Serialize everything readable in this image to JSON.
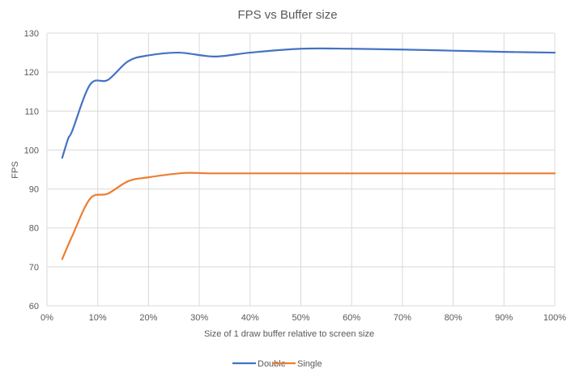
{
  "chart_data": {
    "type": "line",
    "title": "FPS vs Buffer size",
    "xlabel": "Size of 1 draw buffer relative to screen size",
    "ylabel": "FPS",
    "xlim": [
      0,
      100
    ],
    "ylim": [
      60,
      130
    ],
    "x_ticks": [
      "0%",
      "10%",
      "20%",
      "30%",
      "40%",
      "50%",
      "60%",
      "70%",
      "80%",
      "90%",
      "100%"
    ],
    "y_ticks": [
      "60",
      "70",
      "80",
      "90",
      "100",
      "110",
      "120",
      "130"
    ],
    "grid": true,
    "legend": "bottom",
    "smooth": true,
    "series": [
      {
        "name": "Double",
        "color": "#4472C4",
        "x": [
          3,
          4.2,
          5,
          8.5,
          12,
          16,
          20,
          26,
          33,
          40,
          50,
          60,
          70,
          80,
          90,
          100
        ],
        "y": [
          98,
          103,
          105,
          116.8,
          118,
          122.8,
          124.3,
          125,
          124,
          125,
          126,
          126,
          125.8,
          125.5,
          125.2,
          125
        ]
      },
      {
        "name": "Single",
        "color": "#ED7D31",
        "x": [
          3,
          5,
          8.5,
          12,
          16,
          20,
          27,
          33,
          50,
          75,
          100
        ],
        "y": [
          72,
          78,
          87.5,
          88.8,
          92,
          93,
          94.1,
          94,
          94,
          94,
          94
        ]
      }
    ]
  }
}
